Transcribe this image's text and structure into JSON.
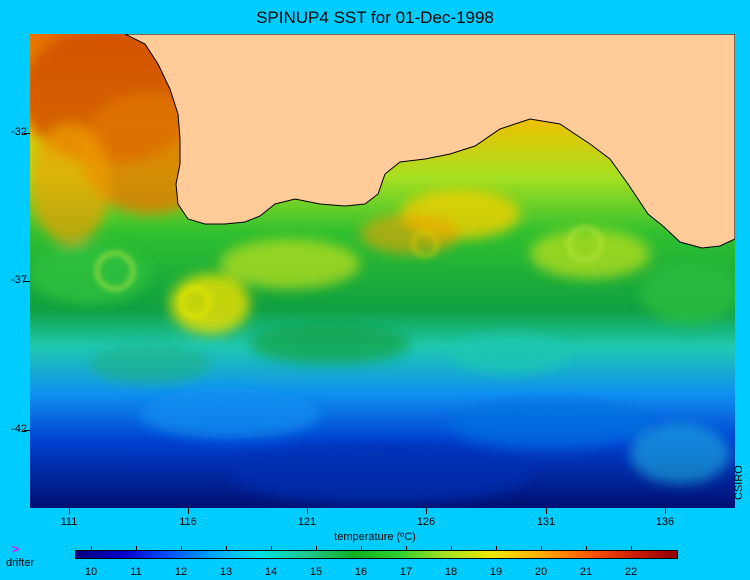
{
  "title": "SPINUP4 SST for 01-Dec-1998",
  "credit": "CSIRO",
  "map": {
    "lat_labels": [
      "-32",
      "-37",
      "-42"
    ],
    "lon_labels": [
      "111",
      "116",
      "121",
      "126",
      "131",
      "136"
    ]
  },
  "colorbar": {
    "label": "temperature (ºC)",
    "ticks": [
      "10",
      "11",
      "12",
      "13",
      "14",
      "15",
      "16",
      "17",
      "18",
      "19",
      "20",
      "21",
      "22"
    ],
    "colors": [
      "#00007f",
      "#0000c8",
      "#0050ff",
      "#00a8ff",
      "#00e0e0",
      "#20c890",
      "#10b020",
      "#30d030",
      "#a8e020",
      "#f0e800",
      "#ffb000",
      "#ff6000",
      "#d02000",
      "#900000"
    ]
  },
  "legend": {
    "symbol": ">",
    "label": "drifter"
  },
  "colors": {
    "background": "#00ccff",
    "land": "#ffcc99"
  }
}
